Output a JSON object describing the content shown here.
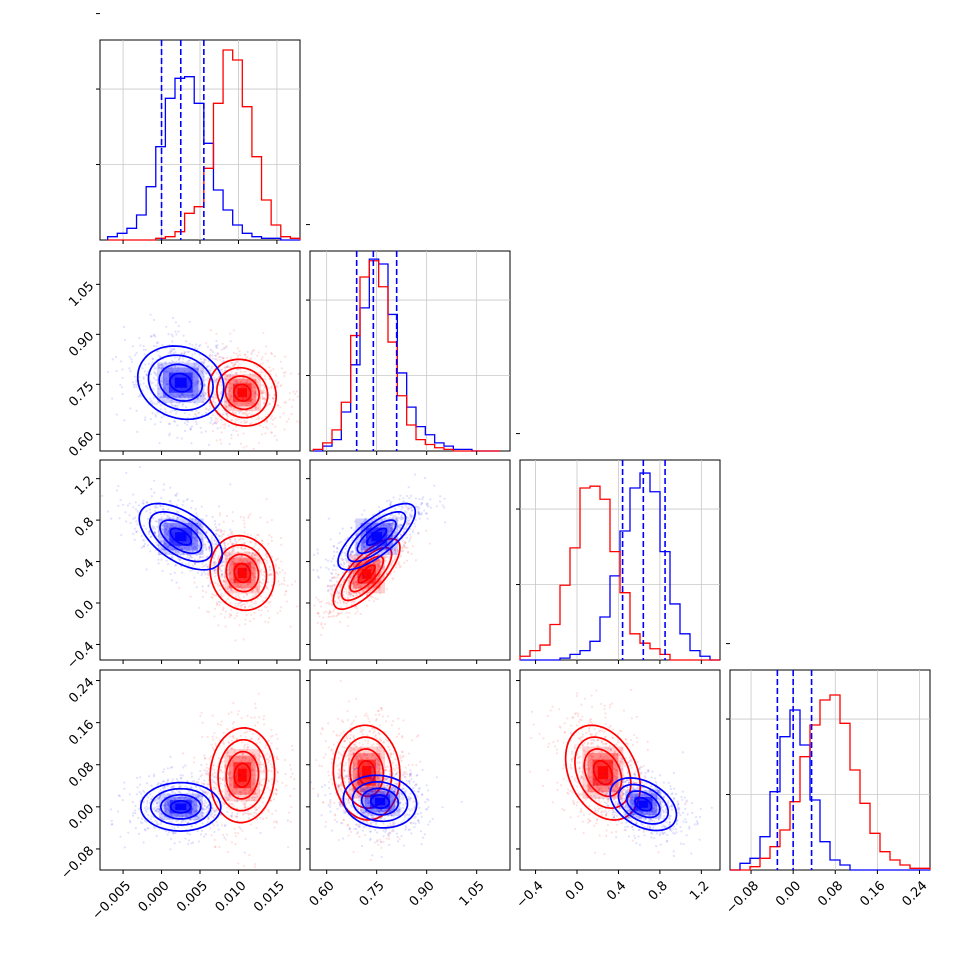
{
  "chart_data": {
    "type": "corner",
    "grid": true,
    "colors": {
      "series_a": "#0000ff",
      "series_b": "#ff0000"
    },
    "series": [
      {
        "color": "#0000ff",
        "quantile_lines": {
          "p0": [
            0.0,
            0.0025,
            0.0055
          ],
          "p1": [
            0.69,
            0.74,
            0.81
          ],
          "p2": [
            0.44,
            0.64,
            0.85
          ],
          "p3": [
            -0.03,
            0.0,
            0.035
          ]
        }
      },
      {
        "color": "#ff0000"
      }
    ],
    "params": [
      {
        "range": [
          -0.008,
          0.018
        ],
        "ticks": [
          -0.005,
          0.0,
          0.005,
          0.01,
          0.015
        ],
        "tick_labels": [
          "−0.005",
          "0.000",
          "0.005",
          "0.010",
          "0.015"
        ]
      },
      {
        "range": [
          0.55,
          1.15
        ],
        "ticks": [
          0.6,
          0.75,
          0.9,
          1.05
        ],
        "tick_labels": [
          "0.60",
          "0.75",
          "0.90",
          "1.05"
        ]
      },
      {
        "range": [
          -0.55,
          1.38
        ],
        "ticks": [
          -0.4,
          0.0,
          0.4,
          0.8,
          1.2
        ],
        "tick_labels": [
          "−0.4",
          "0.0",
          "0.4",
          "0.8",
          "1.2"
        ]
      },
      {
        "range": [
          -0.12,
          0.26
        ],
        "ticks": [
          -0.08,
          0.0,
          0.08,
          0.16,
          0.24
        ],
        "tick_labels": [
          "−0.08",
          "0.00",
          "0.08",
          "0.16",
          "0.24"
        ]
      }
    ],
    "histograms": [
      {
        "param": 0,
        "edges": [
          -0.007,
          0.018
        ],
        "ymax": 1.2,
        "series_a": [
          0.02,
          0.04,
          0.07,
          0.15,
          0.32,
          0.56,
          0.85,
          0.97,
          0.98,
          0.82,
          0.58,
          0.3,
          0.18,
          0.09,
          0.04,
          0.02,
          0.01,
          0.01,
          0.0,
          0.0
        ],
        "series_b": [
          0.0,
          0.0,
          0.0,
          0.0,
          0.0,
          0.01,
          0.02,
          0.05,
          0.16,
          0.2,
          0.43,
          0.82,
          1.14,
          1.08,
          0.8,
          0.5,
          0.24,
          0.09,
          0.02,
          0.01
        ]
      },
      {
        "param": 1,
        "edges": [
          0.56,
          1.12
        ],
        "ymax": 1.23,
        "series_a": [
          0.0,
          0.03,
          0.07,
          0.24,
          0.53,
          0.88,
          1.18,
          1.15,
          0.84,
          0.48,
          0.27,
          0.15,
          0.1,
          0.05,
          0.03,
          0.01,
          0.01,
          0.0,
          0.0,
          0.0
        ],
        "series_b": [
          0.01,
          0.05,
          0.13,
          0.3,
          0.71,
          1.07,
          1.17,
          1.01,
          0.67,
          0.34,
          0.16,
          0.07,
          0.04,
          0.02,
          0.01,
          0.0,
          0.0,
          0.0,
          0.0,
          0.0
        ]
      },
      {
        "param": 2,
        "edges": [
          -0.55,
          1.38
        ],
        "ymax": 1.07,
        "series_a": [
          0.0,
          0.0,
          0.0,
          0.0,
          0.01,
          0.03,
          0.05,
          0.1,
          0.23,
          0.45,
          0.69,
          0.92,
          1.0,
          0.9,
          0.58,
          0.3,
          0.14,
          0.05,
          0.02,
          0.0
        ],
        "series_b": [
          0.02,
          0.05,
          0.08,
          0.19,
          0.4,
          0.6,
          0.92,
          0.93,
          0.86,
          0.58,
          0.36,
          0.14,
          0.09,
          0.06,
          0.03,
          0.0,
          0.0,
          0.0,
          0.0,
          0.0
        ]
      },
      {
        "param": 3,
        "edges": [
          -0.12,
          0.26
        ],
        "ymax": 1.2,
        "series_a": [
          0.0,
          0.04,
          0.07,
          0.2,
          0.47,
          0.8,
          0.96,
          0.75,
          0.42,
          0.17,
          0.06,
          0.03,
          0.0,
          0.0,
          0.0,
          0.0,
          0.0,
          0.0,
          0.0,
          0.0
        ],
        "series_b": [
          0.0,
          0.0,
          0.02,
          0.07,
          0.14,
          0.24,
          0.41,
          0.68,
          0.87,
          1.02,
          1.05,
          0.88,
          0.6,
          0.4,
          0.22,
          0.11,
          0.06,
          0.03,
          0.01,
          0.01
        ]
      }
    ],
    "pairs": [
      {
        "x": 0,
        "y": 1,
        "series_a": {
          "center": [
            0.0025,
            0.755
          ],
          "sd": [
            0.0028,
            0.055
          ],
          "rho": -0.15
        },
        "series_b": {
          "center": [
            0.0105,
            0.725
          ],
          "sd": [
            0.0022,
            0.05
          ],
          "rho": -0.1
        }
      },
      {
        "x": 0,
        "y": 2,
        "series_a": {
          "center": [
            0.0025,
            0.64
          ],
          "sd": [
            0.0027,
            0.16
          ],
          "rho": -0.55
        },
        "series_b": {
          "center": [
            0.0105,
            0.29
          ],
          "sd": [
            0.0021,
            0.18
          ],
          "rho": -0.1
        }
      },
      {
        "x": 1,
        "y": 2,
        "series_a": {
          "center": [
            0.75,
            0.64
          ],
          "sd": [
            0.058,
            0.16
          ],
          "rho": 0.75
        },
        "series_b": {
          "center": [
            0.72,
            0.28
          ],
          "sd": [
            0.05,
            0.17
          ],
          "rho": 0.75
        }
      },
      {
        "x": 0,
        "y": 3,
        "series_a": {
          "center": [
            0.0025,
            0.0
          ],
          "sd": [
            0.0026,
            0.023
          ],
          "rho": 0.0
        },
        "series_b": {
          "center": [
            0.0105,
            0.06
          ],
          "sd": [
            0.0021,
            0.045
          ],
          "rho": 0.05
        }
      },
      {
        "x": 1,
        "y": 3,
        "series_a": {
          "center": [
            0.76,
            0.01
          ],
          "sd": [
            0.055,
            0.025
          ],
          "rho": -0.1
        },
        "series_b": {
          "center": [
            0.72,
            0.065
          ],
          "sd": [
            0.05,
            0.045
          ],
          "rho": -0.05
        }
      },
      {
        "x": 2,
        "y": 3,
        "series_a": {
          "center": [
            0.64,
            0.005
          ],
          "sd": [
            0.16,
            0.025
          ],
          "rho": -0.4
        },
        "series_b": {
          "center": [
            0.25,
            0.065
          ],
          "sd": [
            0.18,
            0.045
          ],
          "rho": -0.3
        }
      }
    ]
  }
}
